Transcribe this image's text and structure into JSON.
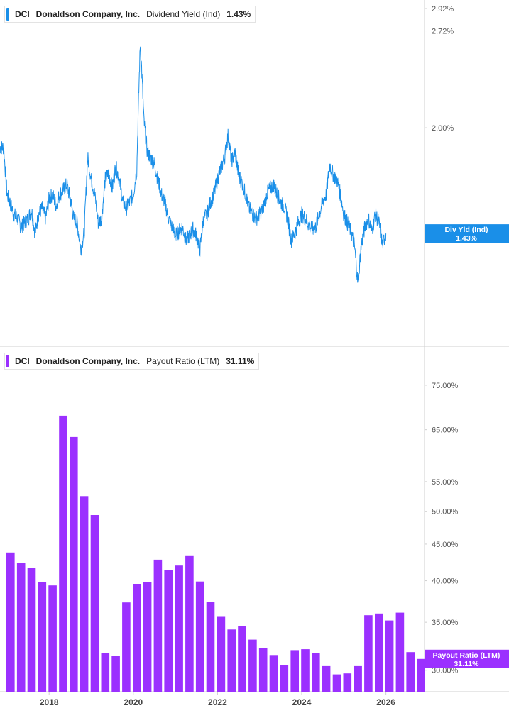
{
  "colors": {
    "yield": "#1a8fe8",
    "payout": "#9b30ff",
    "axis": "#cfcfcf",
    "tick_text": "#555555",
    "x_text": "#444444"
  },
  "legend_top": {
    "ticker": "DCI",
    "company": "Donaldson Company, Inc.",
    "metric": "Dividend Yield (Ind)",
    "value": "1.43%"
  },
  "legend_bottom": {
    "ticker": "DCI",
    "company": "Donaldson Company, Inc.",
    "metric": "Payout Ratio (LTM)",
    "value": "31.11%"
  },
  "chart_data": [
    {
      "type": "line",
      "series_name": "Div Yld (Ind)",
      "last_value_label": [
        "Div Yld (Ind)",
        "1.43%"
      ],
      "y_axis": "log",
      "ylim": [
        1.0,
        3.0
      ],
      "y_ticks": [
        2.92,
        2.72,
        2.0
      ],
      "y_tick_labels": [
        "2.92%",
        "2.72%",
        "2.00%"
      ],
      "last_value": 1.43,
      "points": [
        [
          "2016-11",
          1.88
        ],
        [
          "2016-12",
          1.88
        ],
        [
          "2017-01",
          1.62
        ],
        [
          "2017-02",
          1.57
        ],
        [
          "2017-03",
          1.52
        ],
        [
          "2017-04",
          1.5
        ],
        [
          "2017-05",
          1.46
        ],
        [
          "2017-06",
          1.48
        ],
        [
          "2017-07",
          1.5
        ],
        [
          "2017-08",
          1.54
        ],
        [
          "2017-09",
          1.43
        ],
        [
          "2017-10",
          1.52
        ],
        [
          "2017-11",
          1.55
        ],
        [
          "2017-12",
          1.5
        ],
        [
          "2018-01",
          1.6
        ],
        [
          "2018-02",
          1.62
        ],
        [
          "2018-03",
          1.56
        ],
        [
          "2018-04",
          1.62
        ],
        [
          "2018-05",
          1.64
        ],
        [
          "2018-06",
          1.67
        ],
        [
          "2018-07",
          1.6
        ],
        [
          "2018-08",
          1.5
        ],
        [
          "2018-09",
          1.48
        ],
        [
          "2018-10",
          1.36
        ],
        [
          "2018-11",
          1.43
        ],
        [
          "2018-12",
          1.82
        ],
        [
          "2019-01",
          1.7
        ],
        [
          "2019-02",
          1.62
        ],
        [
          "2019-03",
          1.48
        ],
        [
          "2019-04",
          1.5
        ],
        [
          "2019-05",
          1.7
        ],
        [
          "2019-06",
          1.73
        ],
        [
          "2019-07",
          1.65
        ],
        [
          "2019-08",
          1.77
        ],
        [
          "2019-09",
          1.7
        ],
        [
          "2019-10",
          1.58
        ],
        [
          "2019-11",
          1.55
        ],
        [
          "2019-12",
          1.58
        ],
        [
          "2020-01",
          1.62
        ],
        [
          "2020-02",
          1.75
        ],
        [
          "2020-03",
          2.62
        ],
        [
          "2020-04",
          2.05
        ],
        [
          "2020-05",
          1.85
        ],
        [
          "2020-06",
          1.82
        ],
        [
          "2020-07",
          1.78
        ],
        [
          "2020-08",
          1.7
        ],
        [
          "2020-09",
          1.62
        ],
        [
          "2020-10",
          1.58
        ],
        [
          "2020-11",
          1.5
        ],
        [
          "2020-12",
          1.46
        ],
        [
          "2021-01",
          1.42
        ],
        [
          "2021-02",
          1.44
        ],
        [
          "2021-03",
          1.46
        ],
        [
          "2021-04",
          1.4
        ],
        [
          "2021-05",
          1.42
        ],
        [
          "2021-06",
          1.45
        ],
        [
          "2021-07",
          1.42
        ],
        [
          "2021-08",
          1.36
        ],
        [
          "2021-09",
          1.5
        ],
        [
          "2021-10",
          1.52
        ],
        [
          "2021-11",
          1.58
        ],
        [
          "2021-12",
          1.62
        ],
        [
          "2022-01",
          1.7
        ],
        [
          "2022-02",
          1.76
        ],
        [
          "2022-03",
          1.82
        ],
        [
          "2022-04",
          1.95
        ],
        [
          "2022-05",
          1.8
        ],
        [
          "2022-06",
          1.85
        ],
        [
          "2022-07",
          1.72
        ],
        [
          "2022-08",
          1.68
        ],
        [
          "2022-09",
          1.62
        ],
        [
          "2022-10",
          1.55
        ],
        [
          "2022-11",
          1.52
        ],
        [
          "2022-12",
          1.5
        ],
        [
          "2023-01",
          1.52
        ],
        [
          "2023-02",
          1.55
        ],
        [
          "2023-03",
          1.62
        ],
        [
          "2023-04",
          1.65
        ],
        [
          "2023-05",
          1.67
        ],
        [
          "2023-06",
          1.62
        ],
        [
          "2023-07",
          1.58
        ],
        [
          "2023-08",
          1.56
        ],
        [
          "2023-09",
          1.5
        ],
        [
          "2023-10",
          1.4
        ],
        [
          "2023-11",
          1.43
        ],
        [
          "2023-12",
          1.48
        ],
        [
          "2024-01",
          1.52
        ],
        [
          "2024-02",
          1.5
        ],
        [
          "2024-03",
          1.47
        ],
        [
          "2024-04",
          1.45
        ],
        [
          "2024-05",
          1.46
        ],
        [
          "2024-06",
          1.52
        ],
        [
          "2024-07",
          1.58
        ],
        [
          "2024-08",
          1.62
        ],
        [
          "2024-09",
          1.78
        ],
        [
          "2024-10",
          1.72
        ],
        [
          "2024-11",
          1.7
        ],
        [
          "2024-12",
          1.62
        ],
        [
          "2025-01",
          1.52
        ],
        [
          "2025-02",
          1.48
        ],
        [
          "2025-03",
          1.44
        ],
        [
          "2025-04",
          1.38
        ],
        [
          "2025-05",
          1.22
        ],
        [
          "2025-06",
          1.38
        ],
        [
          "2025-07",
          1.46
        ],
        [
          "2025-08",
          1.5
        ],
        [
          "2025-09",
          1.44
        ],
        [
          "2025-10",
          1.52
        ],
        [
          "2025-11",
          1.48
        ],
        [
          "2025-12",
          1.38
        ],
        [
          "2026-01",
          1.43
        ]
      ]
    },
    {
      "type": "bar",
      "series_name": "Payout Ratio (LTM)",
      "last_value_label": [
        "Payout Ratio (LTM)",
        "31.11%"
      ],
      "y_axis": "log",
      "ylim": [
        28.0,
        85.0
      ],
      "y_ticks": [
        75,
        65,
        55,
        50,
        45,
        40,
        35,
        30
      ],
      "y_tick_labels": [
        "75.00%",
        "65.00%",
        "55.00%",
        "50.00%",
        "45.00%",
        "40.00%",
        "35.00%",
        "30.00%"
      ],
      "last_value": 31.11,
      "bars": [
        [
          "2017-02",
          43.8
        ],
        [
          "2017-05",
          42.4
        ],
        [
          "2017-08",
          41.7
        ],
        [
          "2017-11",
          39.8
        ],
        [
          "2018-02",
          39.4
        ],
        [
          "2018-05",
          68.0
        ],
        [
          "2018-08",
          63.5
        ],
        [
          "2018-11",
          52.5
        ],
        [
          "2019-02",
          49.4
        ],
        [
          "2019-05",
          31.7
        ],
        [
          "2019-08",
          31.4
        ],
        [
          "2019-11",
          37.3
        ],
        [
          "2020-02",
          39.6
        ],
        [
          "2020-05",
          39.8
        ],
        [
          "2020-08",
          42.8
        ],
        [
          "2020-11",
          41.4
        ],
        [
          "2021-02",
          42.0
        ],
        [
          "2021-05",
          43.4
        ],
        [
          "2021-08",
          39.9
        ],
        [
          "2021-11",
          37.4
        ],
        [
          "2022-02",
          35.7
        ],
        [
          "2022-05",
          34.2
        ],
        [
          "2022-08",
          34.6
        ],
        [
          "2022-11",
          33.1
        ],
        [
          "2023-02",
          32.2
        ],
        [
          "2023-05",
          31.5
        ],
        [
          "2023-08",
          30.5
        ],
        [
          "2023-11",
          32.0
        ],
        [
          "2024-02",
          32.1
        ],
        [
          "2024-05",
          31.7
        ],
        [
          "2024-08",
          30.4
        ],
        [
          "2024-11",
          29.6
        ],
        [
          "2025-02",
          29.7
        ],
        [
          "2025-05",
          30.4
        ],
        [
          "2025-08",
          35.8
        ],
        [
          "2025-11",
          36.0
        ],
        [
          "2026-02",
          35.2
        ],
        [
          "2026-05",
          36.1
        ],
        [
          "2026-08",
          31.8
        ],
        [
          "2026-11",
          31.11
        ]
      ]
    }
  ],
  "x_axis": {
    "ticks": [
      "2018",
      "2020",
      "2022",
      "2024",
      "2026"
    ]
  }
}
